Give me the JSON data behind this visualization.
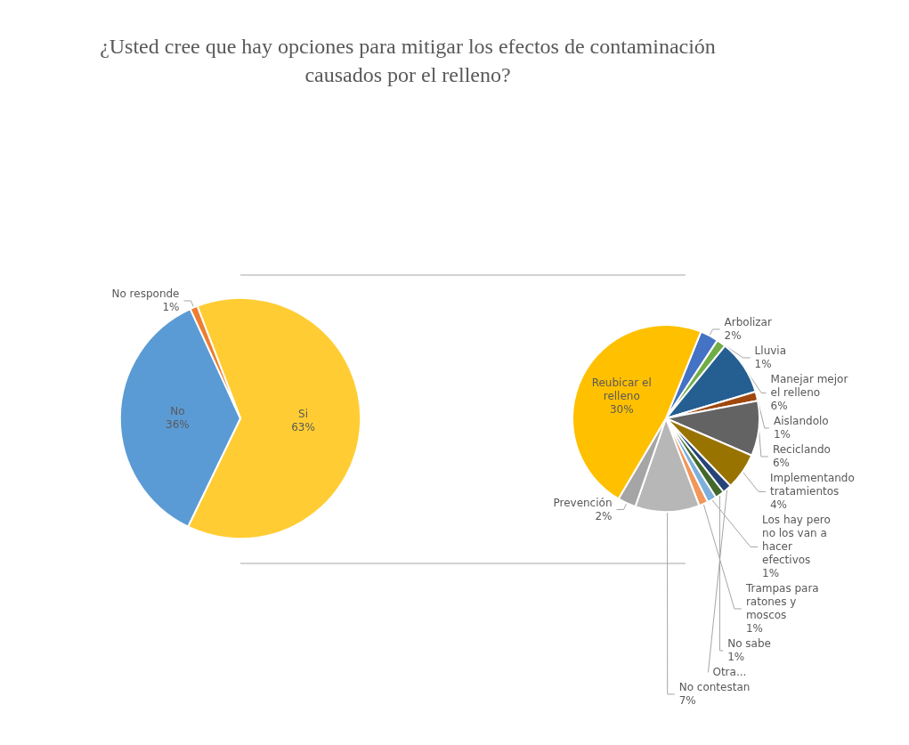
{
  "chart_data": [
    {
      "type": "pie",
      "title": "¿Usted cree que hay opciones para mitigar los efectos de contaminación causados por el relleno?",
      "categories": [
        "Si",
        "No",
        "No responde"
      ],
      "values": [
        63,
        36,
        1
      ],
      "colors": [
        "#ffcd33",
        "#5b9bd5",
        "#ed7d31"
      ],
      "value_labels": [
        "63%",
        "36%",
        "1%"
      ]
    },
    {
      "type": "pie",
      "categories": [
        "Arbolizar",
        "Lluvia",
        "Manejar mejor el relleno",
        "Aislandolo",
        "Reciclando",
        "Implementando tratamientos",
        "Otra...",
        "No sabe",
        "Los hay pero no los van a hacer efectivos",
        "Trampas para ratones y moscos",
        "No contestan",
        "Prevención",
        "Reubicar el relleno"
      ],
      "values": [
        2,
        1,
        6,
        1,
        6,
        4,
        1,
        1,
        1,
        1,
        7,
        2,
        30
      ],
      "colors": [
        "#4472c4",
        "#70ad47",
        "#255e91",
        "#9e480e",
        "#636363",
        "#997300",
        "#264478",
        "#43682b",
        "#7cafdd",
        "#f1975a",
        "#b7b7b7",
        "#a5a5a5",
        "#ffc000"
      ],
      "value_labels": [
        "2%",
        "1%",
        "6%",
        "1%",
        "6%",
        "4%",
        null,
        "1%",
        "1%",
        "1%",
        "7%",
        "2%",
        "30%"
      ]
    }
  ]
}
